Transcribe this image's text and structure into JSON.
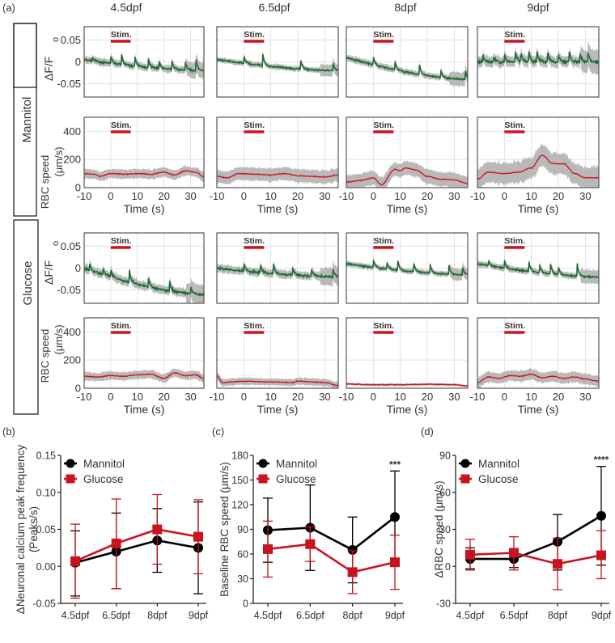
{
  "figure": {
    "panel_labels": {
      "a": "(a)",
      "b": "(b)",
      "c": "(c)",
      "d": "(d)"
    },
    "conditions": [
      "Mannitol",
      "Glucose"
    ],
    "timepoints": [
      "4.5dpf",
      "6.5dpf",
      "8dpf",
      "9dpf"
    ],
    "stim_label": "Stim.",
    "colors": {
      "calcium": "#1e6b33",
      "rbc": "#d0121f",
      "band": "#b5b5b5",
      "mannitol": "#000000",
      "glucose": "#c8141e",
      "grid": "#dddddd"
    }
  },
  "chart_data": [
    {
      "id": "a-traces",
      "type": "line",
      "title": "Panel (a): mean traces with SEM shading",
      "xlabel": "Time (s)",
      "x_range": [
        -10,
        35
      ],
      "x_ticks": [
        "-10",
        "0",
        "10",
        "20",
        "30"
      ],
      "stim_window_s": [
        0,
        7.5
      ],
      "calcium": {
        "ylabel": "ΔF/F",
        "ylabel_sub": "o",
        "ylim": [
          -0.08,
          0.08
        ],
        "y_ticks": [
          "0.05",
          "0",
          "-0.05"
        ],
        "y_tick_values": [
          0.05,
          0,
          -0.05
        ],
        "panels": [
          {
            "condition": "Mannitol",
            "timepoint": "4.5dpf",
            "start": 0.005,
            "end": -0.02,
            "peaks_s": [
              -7,
              0,
              4,
              9,
              14,
              18,
              23,
              28,
              32
            ],
            "noise": 0.008
          },
          {
            "condition": "Mannitol",
            "timepoint": "6.5dpf",
            "start": 0.005,
            "end": -0.02,
            "peaks_s": [
              0,
              7,
              21,
              33
            ],
            "noise": 0.006
          },
          {
            "condition": "Mannitol",
            "timepoint": "8dpf",
            "start": 0.01,
            "end": -0.04,
            "peaks_s": [
              0,
              8,
              17,
              25,
              34
            ],
            "noise": 0.007
          },
          {
            "condition": "Mannitol",
            "timepoint": "9dpf",
            "start": 0.0,
            "end": 0.0,
            "peaks_s": [
              -8,
              -4,
              0,
              4,
              6,
              9,
              12,
              16,
              20,
              24,
              28,
              31
            ],
            "noise": 0.012
          },
          {
            "condition": "Glucose",
            "timepoint": "4.5dpf",
            "start": 0.0,
            "end": -0.06,
            "peaks_s": [
              -8,
              -3,
              0,
              7,
              14,
              22,
              30
            ],
            "noise": 0.01
          },
          {
            "condition": "Glucose",
            "timepoint": "6.5dpf",
            "start": 0.0,
            "end": -0.02,
            "peaks_s": [
              0,
              6,
              11,
              18,
              25,
              33
            ],
            "noise": 0.009
          },
          {
            "condition": "Glucose",
            "timepoint": "8dpf",
            "start": 0.01,
            "end": -0.015,
            "peaks_s": [
              0,
              5,
              9,
              15,
              21,
              28,
              33
            ],
            "noise": 0.006
          },
          {
            "condition": "Glucose",
            "timepoint": "9dpf",
            "start": 0.01,
            "end": -0.02,
            "peaks_s": [
              -6,
              0,
              9,
              13,
              17,
              20,
              27
            ],
            "noise": 0.007
          }
        ]
      },
      "rbc": {
        "ylabel": "RBC speed",
        "ylabel2": "(μm/s)",
        "ylim": [
          0,
          500
        ],
        "y_ticks": [
          "400",
          "200",
          "0"
        ],
        "y_tick_values": [
          400,
          200,
          0
        ],
        "panels": [
          {
            "condition": "Mannitol",
            "timepoint": "4.5dpf",
            "mean": [
              [
                -10,
                100
              ],
              [
                -6,
                95
              ],
              [
                -4,
                80
              ],
              [
                0,
                100
              ],
              [
                5,
                95
              ],
              [
                10,
                100
              ],
              [
                15,
                95
              ],
              [
                20,
                110
              ],
              [
                24,
                90
              ],
              [
                28,
                120
              ],
              [
                32,
                110
              ],
              [
                35,
                75
              ]
            ],
            "sem": 40
          },
          {
            "condition": "Mannitol",
            "timepoint": "6.5dpf",
            "mean": [
              [
                -10,
                80
              ],
              [
                -6,
                70
              ],
              [
                -2,
                100
              ],
              [
                5,
                95
              ],
              [
                10,
                90
              ],
              [
                15,
                100
              ],
              [
                20,
                85
              ],
              [
                25,
                80
              ],
              [
                30,
                75
              ],
              [
                35,
                90
              ]
            ],
            "sem": 55
          },
          {
            "condition": "Mannitol",
            "timepoint": "8dpf",
            "mean": [
              [
                -10,
                40
              ],
              [
                -5,
                50
              ],
              [
                0,
                70
              ],
              [
                3,
                20
              ],
              [
                8,
                130
              ],
              [
                10,
                120
              ],
              [
                12,
                140
              ],
              [
                16,
                125
              ],
              [
                20,
                80
              ],
              [
                25,
                60
              ],
              [
                30,
                55
              ],
              [
                35,
                30
              ]
            ],
            "sem": 60
          },
          {
            "condition": "Mannitol",
            "timepoint": "9dpf",
            "mean": [
              [
                -10,
                60
              ],
              [
                -6,
                110
              ],
              [
                0,
                100
              ],
              [
                5,
                110
              ],
              [
                10,
                140
              ],
              [
                14,
                230
              ],
              [
                18,
                170
              ],
              [
                22,
                170
              ],
              [
                26,
                100
              ],
              [
                30,
                70
              ],
              [
                35,
                70
              ]
            ],
            "sem": 90
          },
          {
            "condition": "Glucose",
            "timepoint": "4.5dpf",
            "mean": [
              [
                -10,
                85
              ],
              [
                -5,
                80
              ],
              [
                0,
                90
              ],
              [
                5,
                85
              ],
              [
                10,
                95
              ],
              [
                15,
                100
              ],
              [
                20,
                70
              ],
              [
                24,
                110
              ],
              [
                28,
                90
              ],
              [
                32,
                95
              ],
              [
                35,
                70
              ]
            ],
            "sem": 35
          },
          {
            "condition": "Glucose",
            "timepoint": "6.5dpf",
            "mean": [
              [
                -10,
                90
              ],
              [
                -8,
                40
              ],
              [
                0,
                50
              ],
              [
                10,
                45
              ],
              [
                18,
                40
              ],
              [
                20,
                50
              ],
              [
                25,
                45
              ],
              [
                30,
                40
              ],
              [
                35,
                20
              ]
            ],
            "sem": 30
          },
          {
            "condition": "Glucose",
            "timepoint": "8dpf",
            "mean": [
              [
                -10,
                30
              ],
              [
                0,
                25
              ],
              [
                10,
                25
              ],
              [
                20,
                28
              ],
              [
                30,
                25
              ],
              [
                35,
                15
              ]
            ],
            "sem": 10
          },
          {
            "condition": "Glucose",
            "timepoint": "9dpf",
            "mean": [
              [
                -10,
                40
              ],
              [
                -6,
                80
              ],
              [
                -2,
                70
              ],
              [
                2,
                90
              ],
              [
                6,
                85
              ],
              [
                10,
                100
              ],
              [
                14,
                75
              ],
              [
                18,
                85
              ],
              [
                22,
                70
              ],
              [
                26,
                80
              ],
              [
                30,
                65
              ],
              [
                35,
                50
              ]
            ],
            "sem": 45
          }
        ]
      }
    },
    {
      "id": "b",
      "type": "line",
      "title": "",
      "xlabel": "",
      "ylabel": "ΔNeuronal calcium peak frequency",
      "ylabel2": "(Peaks/s)",
      "categories": [
        "4.5dpf",
        "6.5dpf",
        "8dpf",
        "9dpf"
      ],
      "ylim": [
        -0.05,
        0.15
      ],
      "y_ticks": [
        "0.15",
        "0.10",
        "0.05",
        "0.00",
        "-0.05"
      ],
      "y_tick_values": [
        0.15,
        0.1,
        0.05,
        0.0,
        -0.05
      ],
      "legend": "top-left",
      "series": [
        {
          "name": "Mannitol",
          "marker": "circle",
          "values": [
            0.005,
            0.02,
            0.035,
            0.025
          ],
          "err_low": [
            -0.04,
            -0.03,
            -0.008,
            -0.037
          ],
          "err_high": [
            0.048,
            0.072,
            0.078,
            0.087
          ]
        },
        {
          "name": "Glucose",
          "marker": "square",
          "values": [
            0.007,
            0.031,
            0.05,
            0.04
          ],
          "err_low": [
            -0.043,
            -0.03,
            0.003,
            -0.01
          ],
          "err_high": [
            0.057,
            0.091,
            0.097,
            0.09
          ]
        }
      ],
      "annotations": []
    },
    {
      "id": "c",
      "type": "line",
      "title": "",
      "xlabel": "",
      "ylabel": "Baseline  RBC speed (μm/s)",
      "categories": [
        "4.5dpf",
        "6.5dpf",
        "8dpf",
        "9dpf"
      ],
      "ylim": [
        0,
        180
      ],
      "y_ticks": [
        "180",
        "150",
        "120",
        "90",
        "60",
        "30",
        "0"
      ],
      "y_tick_values": [
        180,
        150,
        120,
        90,
        60,
        30,
        0
      ],
      "legend": "top-left",
      "series": [
        {
          "name": "Mannitol",
          "marker": "circle",
          "values": [
            89,
            92,
            65,
            105
          ],
          "err_low": [
            50,
            40,
            25,
            50
          ],
          "err_high": [
            128,
            144,
            105,
            161
          ]
        },
        {
          "name": "Glucose",
          "marker": "square",
          "values": [
            66,
            72,
            38,
            50
          ],
          "err_low": [
            32,
            51,
            12,
            17
          ],
          "err_high": [
            100,
            93,
            64,
            83
          ]
        }
      ],
      "annotations": [
        {
          "category": "9dpf",
          "text": "***"
        }
      ]
    },
    {
      "id": "d",
      "type": "line",
      "title": "",
      "xlabel": "",
      "ylabel": "ΔRBC speed (μm/s)",
      "categories": [
        "4.5dpf",
        "6.5dpf",
        "8dpf",
        "9dpf"
      ],
      "ylim": [
        -30,
        90
      ],
      "y_ticks": [
        "90",
        "60",
        "30",
        "0",
        "-30"
      ],
      "y_tick_values": [
        90,
        60,
        30,
        0,
        -30
      ],
      "legend": "top-left",
      "series": [
        {
          "name": "Mannitol",
          "marker": "circle",
          "values": [
            6,
            6,
            20,
            41
          ],
          "err_low": [
            -2,
            -1,
            -3,
            1
          ],
          "err_high": [
            15,
            14,
            42,
            81
          ]
        },
        {
          "name": "Glucose",
          "marker": "square",
          "values": [
            9.5,
            11,
            2,
            9
          ],
          "err_low": [
            -3,
            -3,
            -19,
            -10
          ],
          "err_high": [
            22,
            24,
            23,
            29
          ]
        }
      ],
      "annotations": [
        {
          "category": "9dpf",
          "text": "****"
        }
      ]
    }
  ]
}
